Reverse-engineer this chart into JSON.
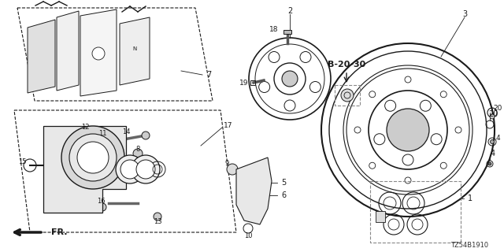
{
  "bg_color": "#ffffff",
  "part_number_code": "TZ54B1910",
  "b_label": "B-20-30",
  "fr_label": "FR.",
  "line_color": "#1a1a1a",
  "gray": "#888888",
  "figsize": [
    6.4,
    3.2
  ],
  "dpi": 100
}
